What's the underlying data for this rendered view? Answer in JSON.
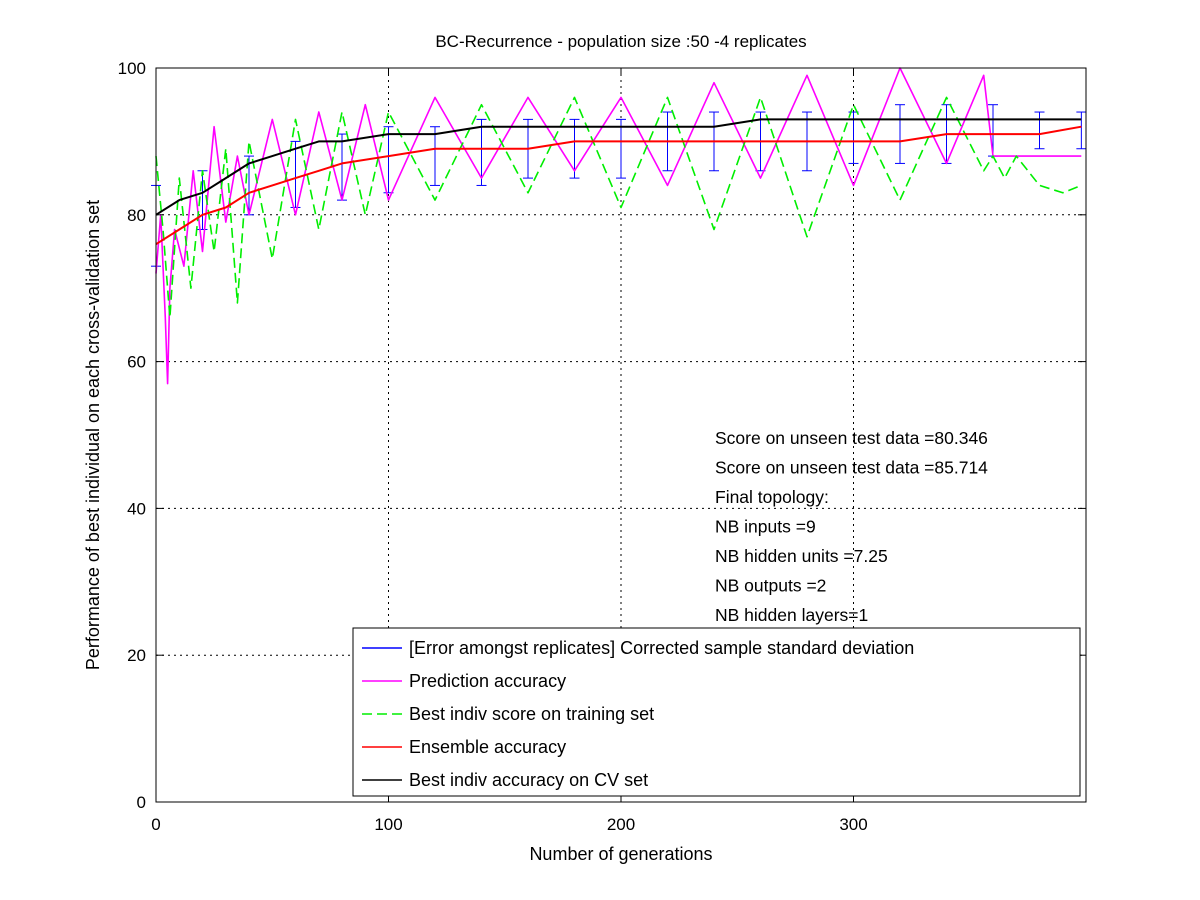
{
  "chart_data": {
    "type": "line",
    "title": "BC-Recurrence - population size :50 -4 replicates",
    "xlabel": "Number of generations",
    "ylabel": "Performance of best individual on each cross-validation set",
    "xlim": [
      0,
      400
    ],
    "ylim": [
      0,
      100
    ],
    "xticks": [
      0,
      100,
      200,
      300
    ],
    "yticks": [
      0,
      20,
      40,
      60,
      80,
      100
    ],
    "grid": true,
    "legend_position": "bottom-right",
    "annotations": [
      "Score on unseen test data =80.346",
      "Score on unseen test data =85.714",
      "Final topology:",
      "NB inputs          =9",
      "NB hidden units  =7.25",
      "NB outputs         =2",
      "NB hidden layers=1"
    ],
    "series": [
      {
        "name": "[Error amongst replicates] Corrected sample standard deviation",
        "color": "#0000ff",
        "style": "errorbars",
        "x": [
          0,
          20,
          40,
          60,
          80,
          100,
          120,
          140,
          160,
          180,
          200,
          220,
          240,
          260,
          280,
          300,
          320,
          340,
          360,
          380,
          398
        ],
        "lower": [
          73,
          78,
          80,
          81,
          82,
          83,
          84,
          84,
          85,
          85,
          85,
          86,
          86,
          86,
          86,
          87,
          87,
          87,
          88,
          89,
          89
        ],
        "upper": [
          84,
          86,
          88,
          90,
          91,
          92,
          92,
          93,
          93,
          93,
          93,
          94,
          94,
          94,
          94,
          94,
          95,
          95,
          95,
          94,
          94
        ]
      },
      {
        "name": "Prediction accuracy",
        "color": "#ff00ff",
        "style": "solid",
        "x": [
          0,
          2,
          4,
          5,
          6,
          8,
          12,
          16,
          20,
          25,
          30,
          35,
          40,
          50,
          60,
          70,
          80,
          90,
          100,
          120,
          140,
          160,
          180,
          200,
          220,
          240,
          260,
          280,
          300,
          320,
          340,
          356,
          360,
          380,
          398
        ],
        "values": [
          72,
          80,
          66,
          57,
          70,
          78,
          73,
          86,
          75,
          92,
          79,
          88,
          80,
          93,
          80,
          94,
          82,
          95,
          82,
          96,
          85,
          96,
          86,
          96,
          84,
          98,
          85,
          99,
          84,
          100,
          87,
          99,
          88,
          88,
          88
        ]
      },
      {
        "name": "Best indiv score on training set",
        "color": "#00ee00",
        "style": "dashed",
        "x": [
          0,
          3,
          6,
          10,
          15,
          20,
          25,
          30,
          35,
          40,
          50,
          60,
          70,
          80,
          90,
          100,
          120,
          140,
          160,
          180,
          200,
          220,
          240,
          260,
          280,
          300,
          320,
          340,
          356,
          360,
          365,
          370,
          380,
          390,
          398
        ],
        "values": [
          88,
          78,
          66,
          85,
          70,
          86,
          75,
          89,
          68,
          90,
          74,
          93,
          78,
          94,
          80,
          94,
          82,
          95,
          83,
          96,
          81,
          96,
          78,
          96,
          77,
          95,
          82,
          96,
          86,
          88,
          85,
          88,
          84,
          83,
          84
        ]
      },
      {
        "name": "Ensemble accuracy",
        "color": "#ff0000",
        "style": "solid",
        "x": [
          0,
          10,
          20,
          30,
          40,
          50,
          60,
          70,
          80,
          100,
          120,
          140,
          160,
          180,
          200,
          220,
          240,
          260,
          280,
          300,
          320,
          340,
          356,
          360,
          380,
          398
        ],
        "values": [
          76,
          78,
          80,
          81,
          83,
          84,
          85,
          86,
          87,
          88,
          89,
          89,
          89,
          90,
          90,
          90,
          90,
          90,
          90,
          90,
          90,
          91,
          91,
          91,
          91,
          92
        ]
      },
      {
        "name": "Best indiv accuracy on CV set",
        "color": "#000000",
        "style": "solid",
        "x": [
          0,
          10,
          20,
          30,
          40,
          50,
          60,
          70,
          80,
          100,
          120,
          140,
          160,
          180,
          200,
          220,
          240,
          260,
          280,
          300,
          320,
          340,
          356,
          360,
          380,
          398
        ],
        "values": [
          80,
          82,
          83,
          85,
          87,
          88,
          89,
          90,
          90,
          91,
          91,
          92,
          92,
          92,
          92,
          92,
          92,
          93,
          93,
          93,
          93,
          93,
          93,
          93,
          93,
          93
        ]
      }
    ]
  }
}
